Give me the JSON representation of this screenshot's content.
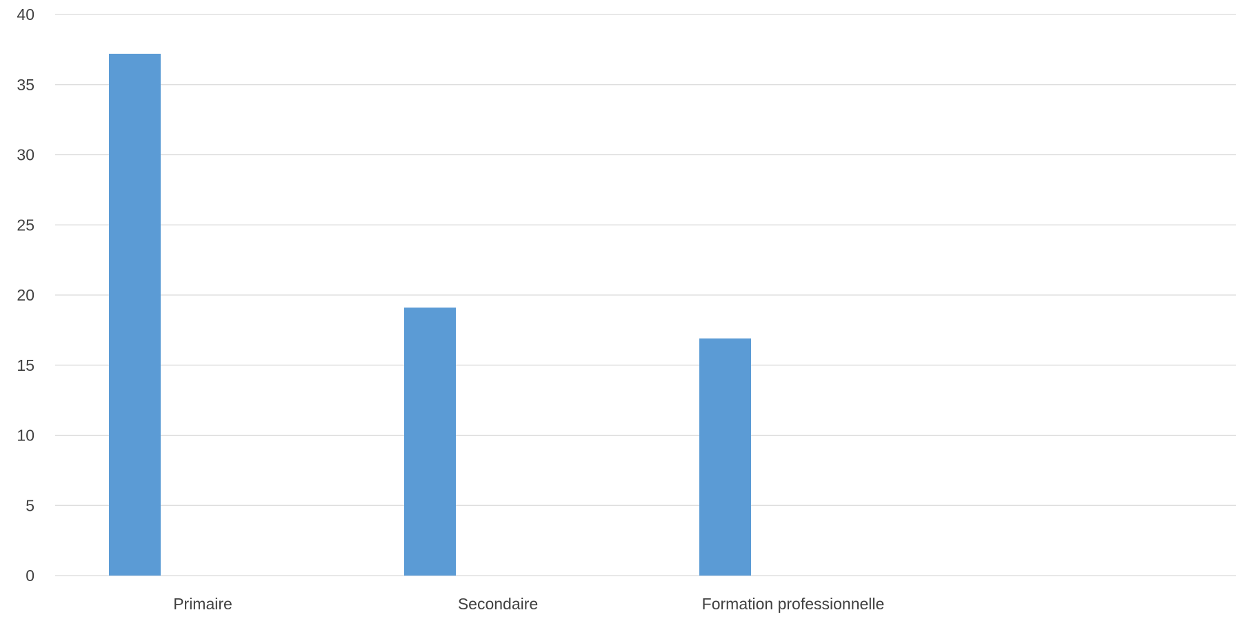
{
  "chart_data": {
    "type": "bar",
    "title": "",
    "xlabel": "",
    "ylabel": "",
    "categories": [
      "Primaire",
      "Secondaire",
      "Formation professionnelle",
      ""
    ],
    "values": [
      37.2,
      19.1,
      16.9,
      null
    ],
    "ylim": [
      0,
      40
    ],
    "yticks": [
      0,
      5,
      10,
      15,
      20,
      25,
      30,
      35,
      40
    ],
    "grid": true,
    "legend": "none",
    "bar_color": "#5b9bd5"
  }
}
